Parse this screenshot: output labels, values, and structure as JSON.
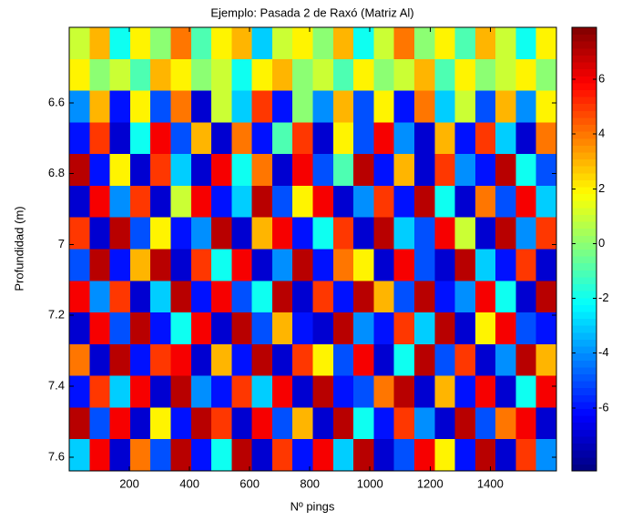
{
  "chart_data": {
    "type": "heatmap",
    "title": "Ejemplo: Pasada 2 de Raxó (Matriz Al)",
    "xlabel": "Nº pings",
    "ylabel": "Profundidad (m)",
    "xlim": [
      0,
      1620
    ],
    "xticks": [
      200,
      400,
      600,
      800,
      1000,
      1200,
      1400
    ],
    "ylim": [
      6.387,
      7.639
    ],
    "yticks": [
      6.6,
      6.8,
      7,
      7.2,
      7.4,
      7.6
    ],
    "y_reversed": true,
    "clim": [
      -8.3,
      7.9
    ],
    "cticks": [
      -6,
      -4,
      -2,
      0,
      2,
      4,
      6
    ],
    "colormap": "jet",
    "z": [
      [
        1,
        3,
        -2,
        2,
        0,
        4,
        -1,
        2,
        3,
        -3,
        1,
        2,
        0,
        3,
        -2,
        1,
        4,
        0,
        2,
        -1,
        3,
        1,
        -2,
        2
      ],
      [
        2,
        0,
        1,
        -1,
        3,
        2,
        0,
        1,
        -2,
        2,
        3,
        0,
        1,
        -1,
        2,
        0,
        1,
        3,
        -1,
        2,
        0,
        1,
        2,
        0
      ],
      [
        -4,
        3,
        -6,
        2,
        -5,
        4,
        -7,
        1,
        -3,
        5,
        -6,
        0,
        -4,
        3,
        -5,
        2,
        -6,
        4,
        -3,
        1,
        -5,
        3,
        -4,
        2
      ],
      [
        -6,
        5,
        -7,
        -2,
        6,
        -5,
        3,
        -7,
        4,
        -6,
        -1,
        5,
        -7,
        2,
        -5,
        6,
        -4,
        -7,
        3,
        -6,
        5,
        -3,
        -7,
        4
      ],
      [
        7,
        -6,
        2,
        -7,
        5,
        -3,
        -7,
        6,
        -2,
        4,
        -7,
        6,
        -5,
        -1,
        7,
        -6,
        3,
        -7,
        5,
        -4,
        -6,
        7,
        -2,
        -5
      ],
      [
        -7,
        6,
        -4,
        5,
        -7,
        1,
        6,
        -6,
        -3,
        7,
        -5,
        2,
        6,
        -7,
        -4,
        5,
        -6,
        7,
        -2,
        -7,
        4,
        -5,
        6,
        -3
      ],
      [
        5,
        -7,
        7,
        -5,
        2,
        -6,
        -4,
        7,
        -7,
        3,
        6,
        -6,
        -2,
        5,
        -7,
        7,
        -3,
        -5,
        6,
        1,
        -7,
        7,
        -4,
        5
      ],
      [
        -5,
        7,
        -6,
        3,
        7,
        -7,
        5,
        -2,
        6,
        -7,
        -4,
        7,
        -6,
        4,
        2,
        -7,
        6,
        -5,
        -7,
        7,
        -3,
        -6,
        5,
        -7
      ],
      [
        6,
        -4,
        5,
        -7,
        -3,
        7,
        -6,
        6,
        -5,
        -2,
        7,
        -7,
        5,
        -6,
        7,
        3,
        -5,
        7,
        -6,
        -4,
        6,
        -2,
        -7,
        7
      ],
      [
        -7,
        6,
        -5,
        7,
        -6,
        -2,
        6,
        -7,
        7,
        -5,
        3,
        -6,
        -7,
        7,
        -4,
        -6,
        5,
        -3,
        7,
        -7,
        2,
        6,
        -5,
        -6
      ],
      [
        4,
        -7,
        7,
        -6,
        5,
        6,
        -7,
        3,
        -6,
        7,
        -7,
        5,
        2,
        -5,
        6,
        -7,
        -2,
        7,
        -5,
        5,
        -7,
        -4,
        7,
        3
      ],
      [
        -6,
        5,
        -3,
        6,
        -7,
        7,
        -4,
        -6,
        5,
        -3,
        6,
        -7,
        7,
        -6,
        -5,
        4,
        7,
        -7,
        3,
        -6,
        6,
        -7,
        -2,
        6
      ],
      [
        7,
        -5,
        6,
        -7,
        2,
        -6,
        7,
        5,
        -7,
        6,
        -5,
        3,
        -7,
        7,
        -2,
        -6,
        5,
        -4,
        -7,
        7,
        -5,
        4,
        6,
        -7
      ],
      [
        -3,
        6,
        -7,
        4,
        -5,
        7,
        -6,
        -2,
        7,
        -7,
        5,
        -6,
        6,
        -3,
        7,
        -7,
        -5,
        6,
        2,
        -6,
        7,
        -7,
        5,
        -4
      ]
    ]
  }
}
